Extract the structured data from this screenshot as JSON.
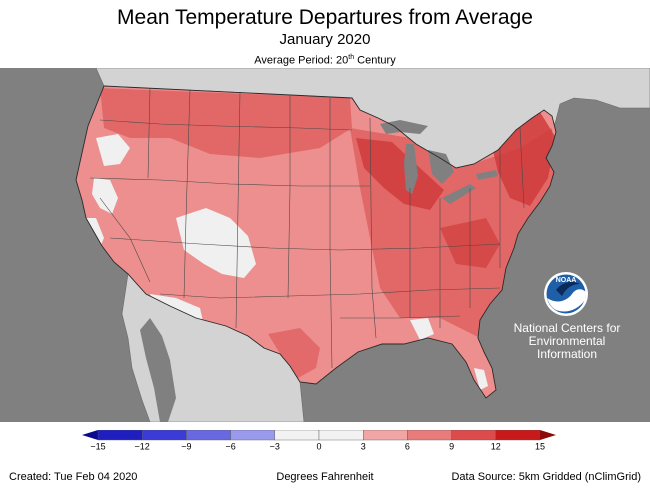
{
  "title": "Mean Temperature Departures from Average",
  "subtitle": "January 2020",
  "period": {
    "prefix": "Average Period: 20",
    "sup": "th",
    "suffix": " Century"
  },
  "legend": {
    "unit_label": "Degrees Fahrenheit",
    "ticks": [
      "−15",
      "−12",
      "−9",
      "−6",
      "−3",
      "0",
      "3",
      "6",
      "9",
      "12",
      "15"
    ],
    "colors": [
      "#1f1fbf",
      "#3b3bd6",
      "#6868e0",
      "#9a9aec",
      "#f2f2f2",
      "#f2f2f2",
      "#f2a5a5",
      "#ea7b7b",
      "#dc4c4c",
      "#c81a1a"
    ]
  },
  "footer": {
    "created": "Created: Tue Feb 04 2020",
    "source": "Data Source: 5km Gridded (nClimGrid)"
  },
  "logo": {
    "wordmark": "NOAA",
    "caption": [
      "National Centers for",
      "Environmental",
      "Information"
    ]
  },
  "map_colors": {
    "ocean": "#808080",
    "land_outside": "#d3d3d3",
    "base": "#ee8f8f",
    "warm": "#e06464",
    "hot": "#d03c3c",
    "near_normal": "#f0f0f0",
    "borders": "#4a4a4a"
  }
}
